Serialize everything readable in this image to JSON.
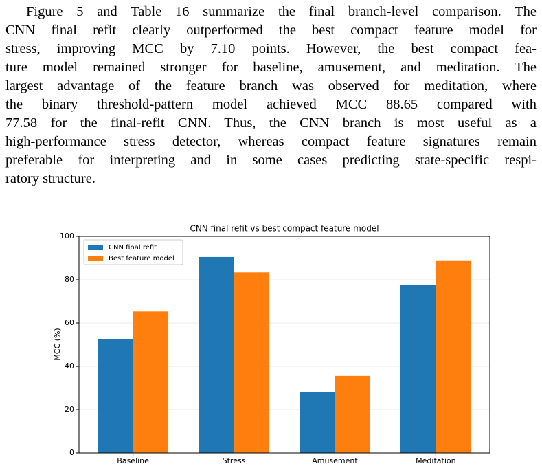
{
  "paragraph": {
    "lines": [
      "Figure 5 and Table 16 summarize the final branch-level comparison. The",
      "CNN final refit clearly outperformed the best compact feature model for",
      "stress, improving MCC by 7.10 points.  However, the best compact fea-",
      "ture model remained stronger for baseline, amusement, and meditation. The",
      "largest advantage of the feature branch was observed for meditation, where",
      "the binary threshold-pattern model achieved MCC 88.65 compared with",
      "77.58 for the final-refit CNN. Thus, the CNN branch is most useful as a",
      "high-performance stress detector, whereas compact feature signatures remain",
      "preferable for interpreting and in some cases predicting state-specific respi-",
      "ratory structure."
    ]
  },
  "chart_data": {
    "type": "bar",
    "title": "CNN final refit vs best compact feature model",
    "y_label": "MCC (%)",
    "categories": [
      "Baseline",
      "Stress",
      "Amusement",
      "Meditation"
    ],
    "series": [
      {
        "name": "CNN final refit",
        "color": "#1f77b4",
        "values": [
          52.5,
          90.5,
          28.2,
          77.58
        ]
      },
      {
        "name": "Best feature model",
        "color": "#ff7f0e",
        "values": [
          65.3,
          83.4,
          35.6,
          88.65
        ]
      }
    ],
    "ylim": [
      0,
      100
    ],
    "yticks": [
      0,
      20,
      40,
      60,
      80,
      100
    ],
    "grid": true,
    "legend": "upper-left"
  }
}
